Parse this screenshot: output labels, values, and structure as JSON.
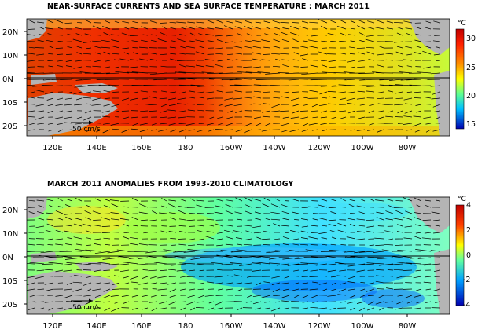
{
  "top_panel": {
    "title": "NEAR-SURFACE CURRENTS AND SEA SURFACE TEMPERATURE : MARCH 2011",
    "lat_labels": [
      "20N",
      "10N",
      "0N",
      "10S",
      "20S"
    ],
    "lon_labels": [
      "120E",
      "140E",
      "160E",
      "180",
      "160W",
      "140W",
      "120W",
      "100W",
      "80W"
    ],
    "scale_label": "50 cm/s",
    "colorbar": {
      "unit": "°C",
      "ticks": [
        "30",
        "25",
        "20",
        "15"
      ],
      "colors": [
        "#d00000",
        "#ff3000",
        "#ff8000",
        "#ffd000",
        "#ffff00",
        "#b0ff40",
        "#30ffc0",
        "#00c0ff",
        "#0060ff",
        "#0000c0"
      ]
    }
  },
  "bottom_panel": {
    "title": "MARCH 2011 ANOMALIES FROM 1993-2010 CLIMATOLOGY",
    "lat_labels": [
      "20N",
      "10N",
      "0N",
      "10S",
      "20S"
    ],
    "lon_labels": [
      "120E",
      "140E",
      "160E",
      "180",
      "160W",
      "140W",
      "120W",
      "100W",
      "80W"
    ],
    "scale_label": "50 cm/s",
    "colorbar": {
      "unit": "°C",
      "ticks": [
        "4",
        "2",
        "0",
        "-2",
        "-4"
      ],
      "colors": [
        "#d00000",
        "#ff4000",
        "#ffa000",
        "#ffff00",
        "#c0ff40",
        "#40ffc0",
        "#00c0ff",
        "#0060ff",
        "#0000c0"
      ]
    }
  },
  "map_colors": {
    "land": "#b4b4b4",
    "equator_line": "#000000",
    "vector": "#000000"
  }
}
